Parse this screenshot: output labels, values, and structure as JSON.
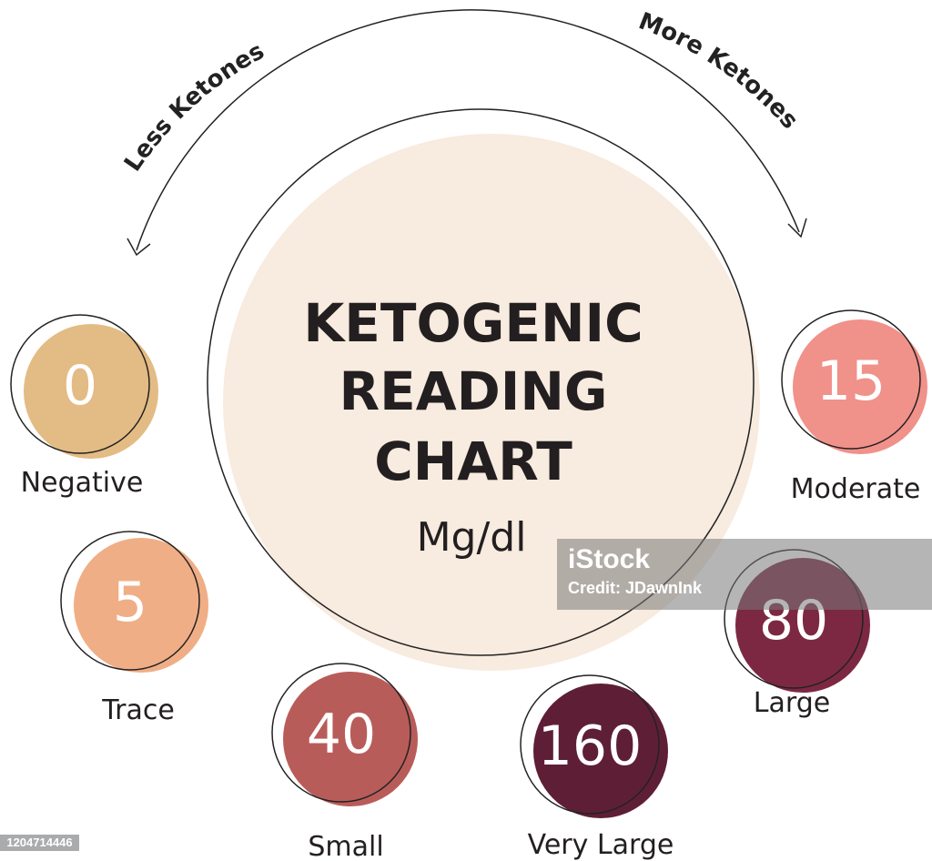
{
  "arrows": {
    "left_label": "Less Ketones",
    "right_label": "More Ketones"
  },
  "center": {
    "title_lines": [
      "KETOGENIC",
      "READING",
      "CHART"
    ],
    "unit": "Mg/dl",
    "color": "#f8ebdf"
  },
  "readings": [
    {
      "value": "0",
      "label": "Negative",
      "color": "#e3bb84"
    },
    {
      "value": "5",
      "label": "Trace",
      "color": "#f0ae86"
    },
    {
      "value": "40",
      "label": "Small",
      "color": "#b85c5a"
    },
    {
      "value": "160",
      "label": "Very Large",
      "color": "#5e1f36"
    },
    {
      "value": "80",
      "label": "Large",
      "color": "#7d2843"
    },
    {
      "value": "15",
      "label": "Moderate",
      "color": "#f0918a"
    }
  ],
  "watermark": {
    "brand": "iStock",
    "credit": "Credit: JDawnInk",
    "image_id": "1204714446"
  }
}
